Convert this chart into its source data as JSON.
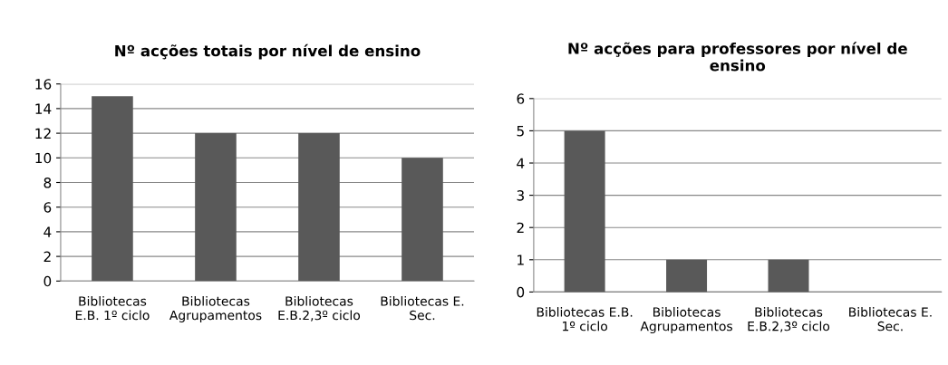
{
  "chart_data": [
    {
      "type": "bar",
      "title": "Nº acções totais por nível de ensino",
      "categories": [
        "Bibliotecas\nE.B. 1º ciclo",
        "Bibliotecas\nAgrupamentos",
        "Bibliotecas\nE.B.2,3º ciclo",
        "Bibliotecas E.\nSec."
      ],
      "values": [
        15,
        12,
        12,
        10
      ],
      "color": "#595959",
      "ylim": [
        0,
        16
      ],
      "yticks": [
        0,
        2,
        4,
        6,
        8,
        10,
        12,
        14,
        16
      ],
      "grid": "y"
    },
    {
      "type": "bar",
      "title": "Nº acções para professores por nível de\nensino",
      "categories": [
        "Bibliotecas E.B.\n1º ciclo",
        "Bibliotecas\nAgrupamentos",
        "Bibliotecas\nE.B.2,3º ciclo",
        "Bibliotecas E.\nSec."
      ],
      "values": [
        5,
        1,
        1,
        0
      ],
      "color": "#595959",
      "ylim": [
        0,
        6
      ],
      "yticks": [
        0,
        1,
        2,
        3,
        4,
        5,
        6
      ],
      "grid": "y"
    }
  ]
}
